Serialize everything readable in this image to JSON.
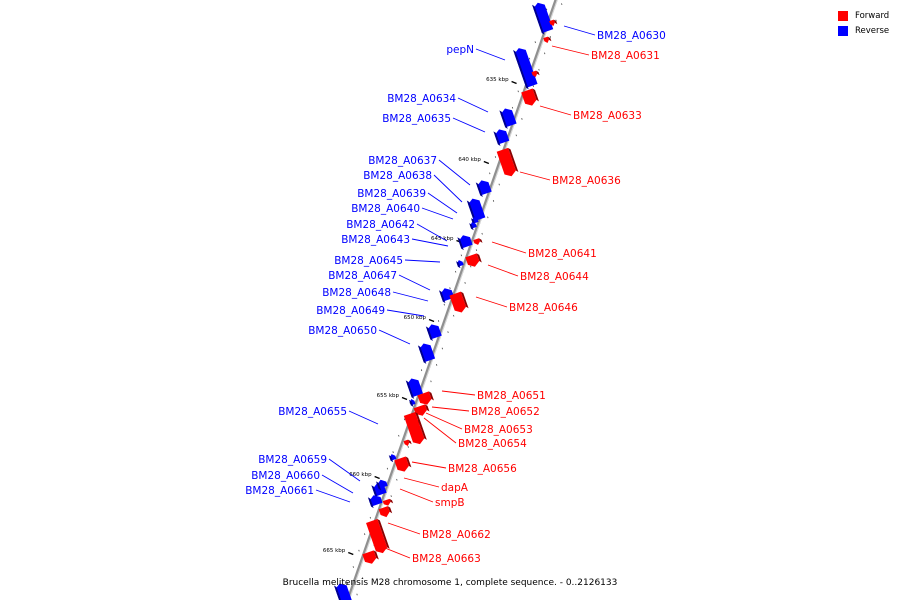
{
  "legend": {
    "items": [
      {
        "label": "Forward",
        "color": "#ff0000"
      },
      {
        "label": "Reverse",
        "color": "#0000ff"
      }
    ]
  },
  "caption": "Brucella melitensis M28 chromosome 1, complete sequence. - 0..2126133",
  "ticks": [
    "635 kbp",
    "640 kbp",
    "645 kbp",
    "650 kbp",
    "655 kbp",
    "660 kbp",
    "665 kbp"
  ],
  "colors": {
    "forward": "#ff0000",
    "reverse": "#0000ff",
    "backbone": "#909090"
  },
  "features": [
    {
      "name": "BM28_A0630",
      "strand": "reverse",
      "labeled": true
    },
    {
      "name": "BM28_A0631",
      "strand": "forward",
      "labeled": true
    },
    {
      "name": "pepN",
      "strand": "reverse",
      "labeled": true
    },
    {
      "name": "BM28_A0633",
      "strand": "forward",
      "labeled": true
    },
    {
      "name": "BM28_A0634",
      "strand": "reverse",
      "labeled": true
    },
    {
      "name": "BM28_A0635",
      "strand": "reverse",
      "labeled": true
    },
    {
      "name": "BM28_A0636",
      "strand": "forward",
      "labeled": true
    },
    {
      "name": "BM28_A0637",
      "strand": "reverse",
      "labeled": true
    },
    {
      "name": "BM28_A0638",
      "strand": "reverse",
      "labeled": true
    },
    {
      "name": "BM28_A0639",
      "strand": "reverse",
      "labeled": true
    },
    {
      "name": "BM28_A0640",
      "strand": "reverse",
      "labeled": true
    },
    {
      "name": "BM28_A0642",
      "strand": "reverse",
      "labeled": true
    },
    {
      "name": "BM28_A0641",
      "strand": "forward",
      "labeled": true
    },
    {
      "name": "BM28_A0643",
      "strand": "reverse",
      "labeled": true
    },
    {
      "name": "BM28_A0644",
      "strand": "forward",
      "labeled": true
    },
    {
      "name": "BM28_A0645",
      "strand": "reverse",
      "labeled": true
    },
    {
      "name": "BM28_A0647",
      "strand": "reverse",
      "labeled": true
    },
    {
      "name": "BM28_A0646",
      "strand": "forward",
      "labeled": true
    },
    {
      "name": "BM28_A0648",
      "strand": "reverse",
      "labeled": true
    },
    {
      "name": "BM28_A0649",
      "strand": "reverse",
      "labeled": true
    },
    {
      "name": "BM28_A0650",
      "strand": "reverse",
      "labeled": true
    },
    {
      "name": "BM28_A0651",
      "strand": "forward",
      "labeled": true
    },
    {
      "name": "BM28_A0652",
      "strand": "forward",
      "labeled": true
    },
    {
      "name": "BM28_A0653",
      "strand": "forward",
      "labeled": true
    },
    {
      "name": "BM28_A0654",
      "strand": "forward",
      "labeled": true
    },
    {
      "name": "BM28_A0655",
      "strand": "reverse",
      "labeled": true
    },
    {
      "name": "BM28_A0656",
      "strand": "forward",
      "labeled": true
    },
    {
      "name": "BM28_A0659",
      "strand": "reverse",
      "labeled": true
    },
    {
      "name": "BM28_A0660",
      "strand": "reverse",
      "labeled": true
    },
    {
      "name": "BM28_A0661",
      "strand": "reverse",
      "labeled": true
    },
    {
      "name": "dapA",
      "strand": "forward",
      "labeled": true
    },
    {
      "name": "smpB",
      "strand": "forward",
      "labeled": true
    },
    {
      "name": "BM28_A0662",
      "strand": "forward",
      "labeled": true
    },
    {
      "name": "BM28_A0663",
      "strand": "forward",
      "labeled": true
    },
    {
      "name": "",
      "strand": "reverse",
      "labeled": false
    },
    {
      "name": "",
      "strand": "reverse",
      "labeled": false
    },
    {
      "name": "",
      "strand": "forward",
      "labeled": false
    },
    {
      "name": "",
      "strand": "forward",
      "labeled": false
    },
    {
      "name": "",
      "strand": "forward",
      "labeled": false
    }
  ]
}
